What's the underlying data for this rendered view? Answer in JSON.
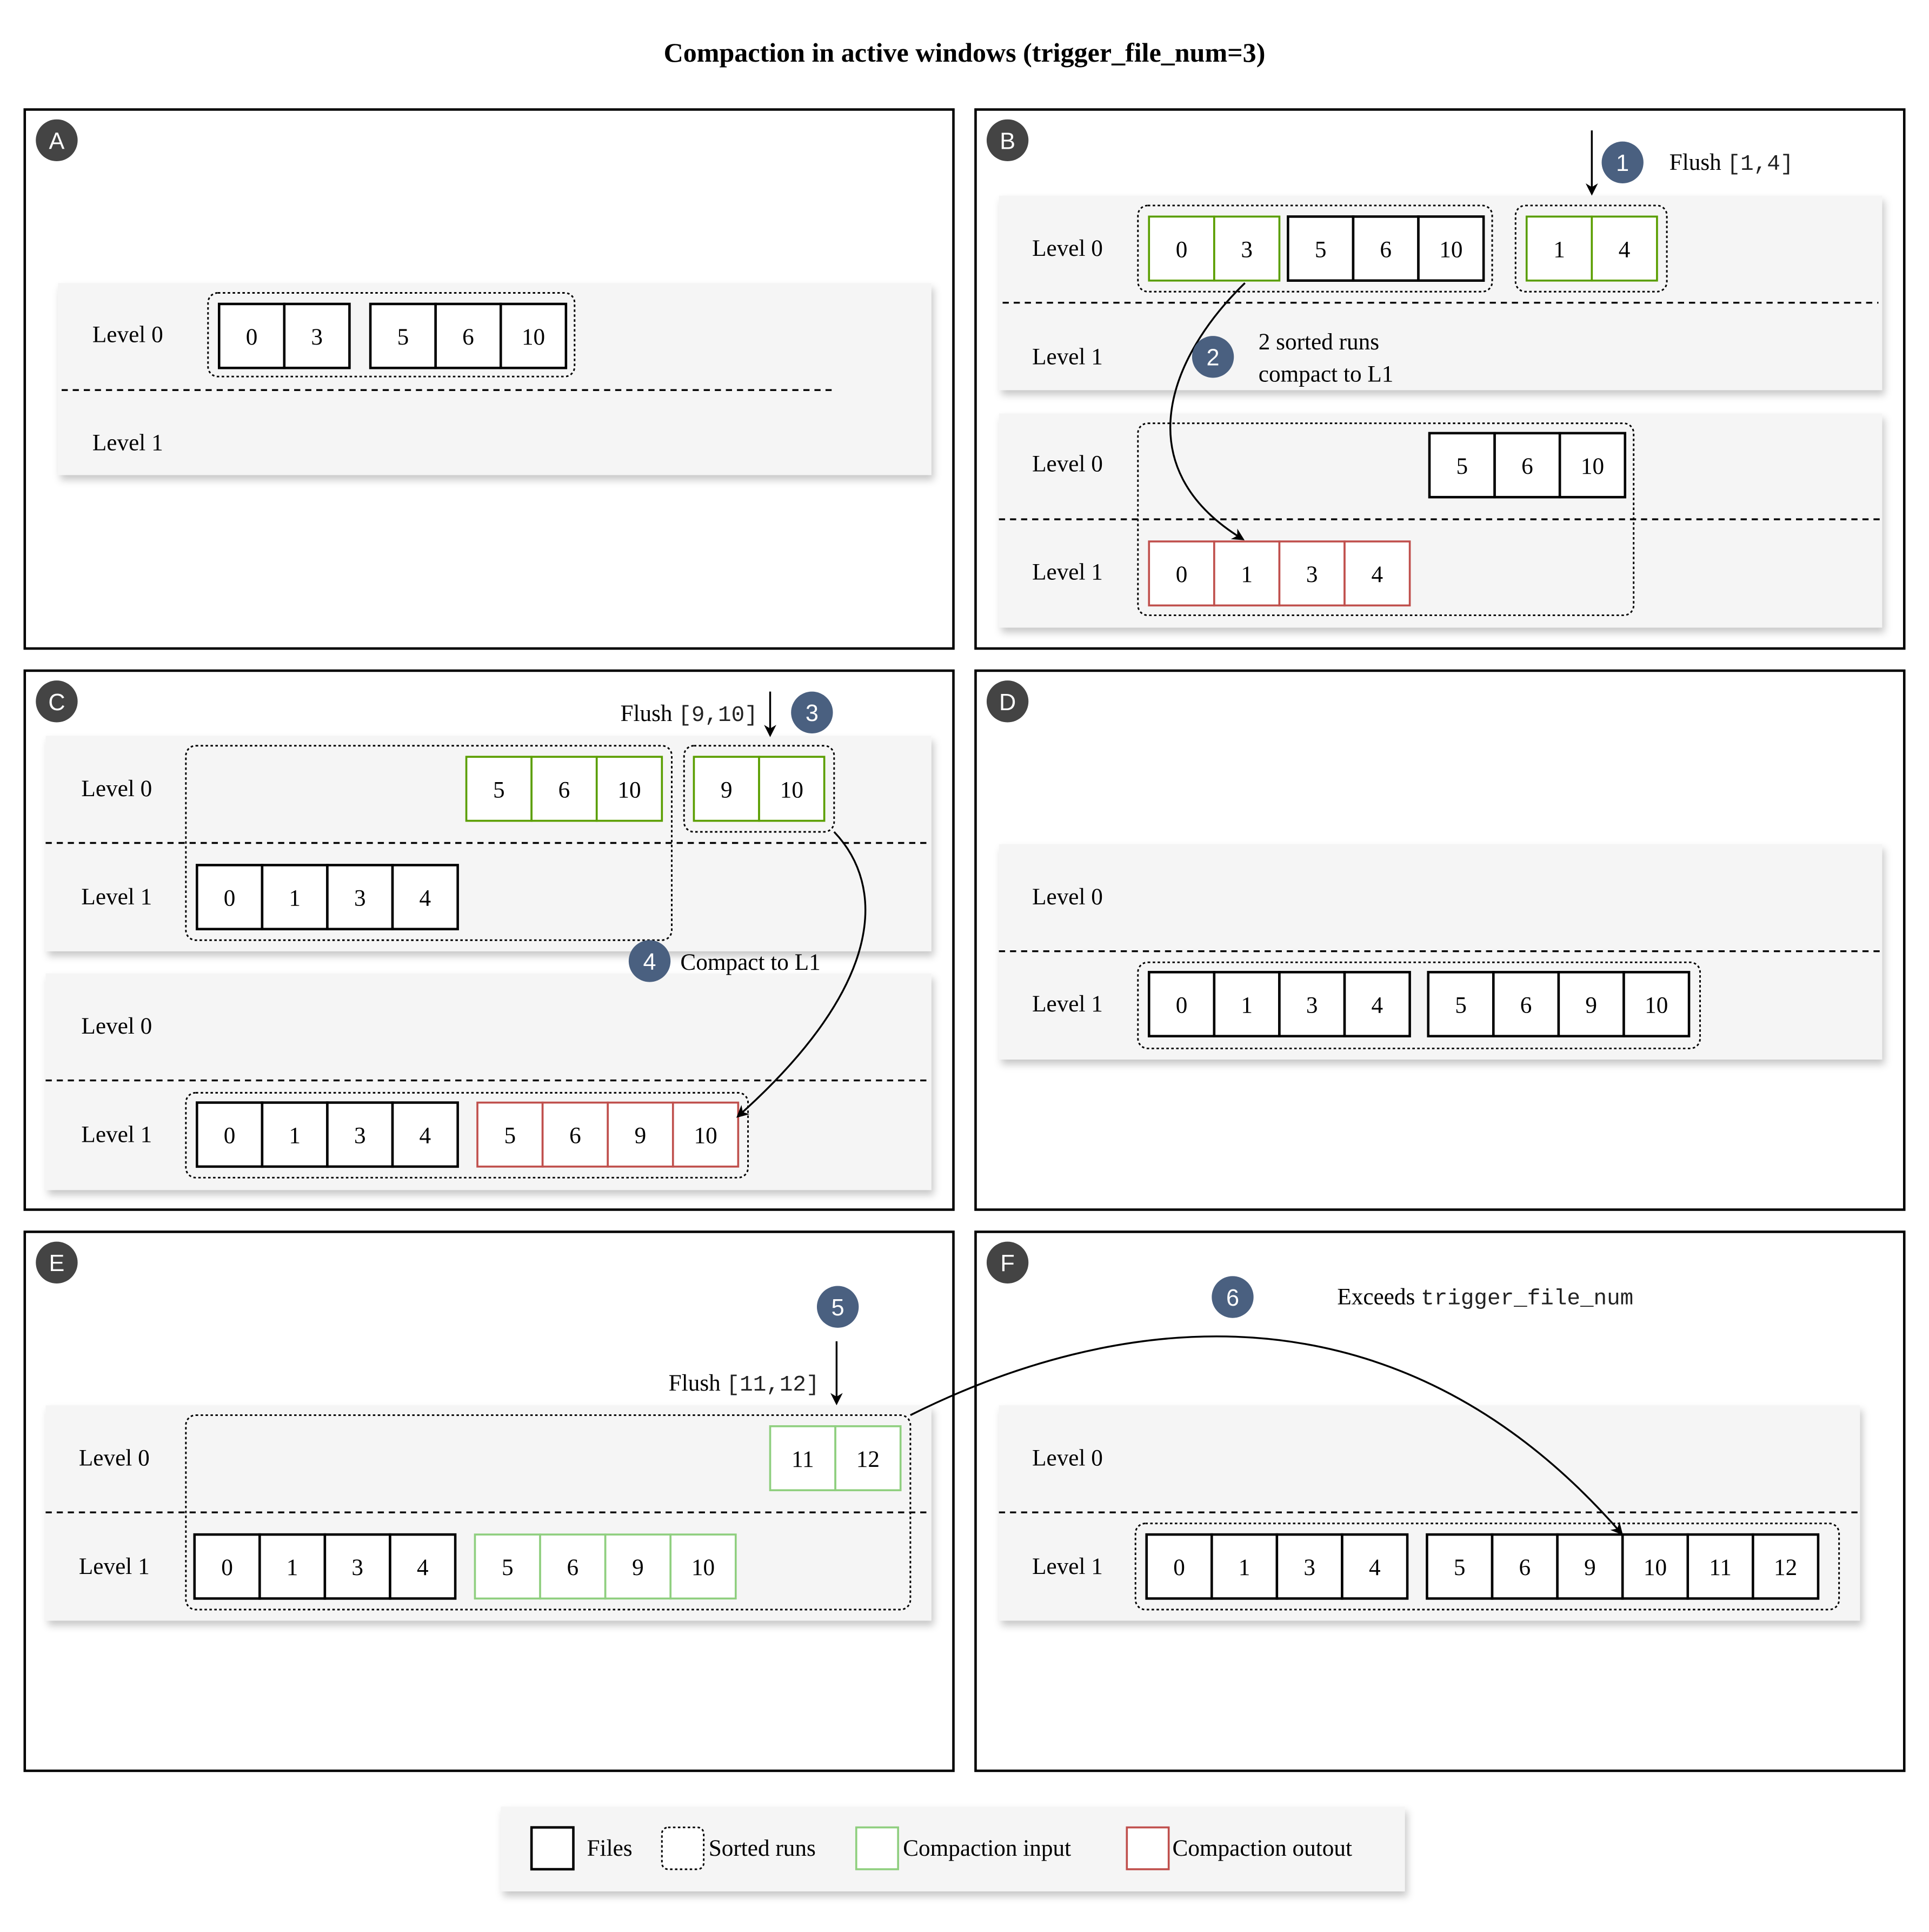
{
  "title": "Compaction in active windows (trigger_file_num=3)",
  "colors": {
    "files": "#000000",
    "input": "#5a9e00",
    "input_light": "#8fcf7f",
    "output": "#c0504d",
    "step_badge": "#4a6080",
    "panel_badge": "#444444",
    "band": "#f5f5f5"
  },
  "level_labels": {
    "l0": "Level 0",
    "l1": "Level 1"
  },
  "panels": {
    "A": {
      "letter": "A",
      "l0_files": [
        [
          "0",
          "3"
        ],
        [
          "5",
          "6",
          "10"
        ]
      ]
    },
    "B": {
      "letter": "B",
      "step1": "1",
      "flush_word": "Flush",
      "flush_range": "[1,4]",
      "step2": "2",
      "note_line1": "2 sorted runs",
      "note_line2": "compact to L1",
      "top_l0_input": [
        "0",
        "3"
      ],
      "top_l0_files": [
        "5",
        "6",
        "10"
      ],
      "top_l0_flushed": [
        "1",
        "4"
      ],
      "bottom_l0_files": [
        "5",
        "6",
        "10"
      ],
      "bottom_l1_output": [
        "0",
        "1",
        "3",
        "4"
      ]
    },
    "C": {
      "letter": "C",
      "step3": "3",
      "flush_word": "Flush",
      "flush_range": "[9,10]",
      "step4": "4",
      "note": "Compact to L1",
      "top_l0_input": [
        "5",
        "6",
        "10"
      ],
      "top_l0_flushed": [
        "9",
        "10"
      ],
      "top_l1_files": [
        "0",
        "1",
        "3",
        "4"
      ],
      "bottom_l1_files": [
        "0",
        "1",
        "3",
        "4"
      ],
      "bottom_l1_output": [
        "5",
        "6",
        "9",
        "10"
      ]
    },
    "D": {
      "letter": "D",
      "l1_files": [
        [
          "0",
          "1",
          "3",
          "4"
        ],
        [
          "5",
          "6",
          "9",
          "10"
        ]
      ]
    },
    "E": {
      "letter": "E",
      "step5": "5",
      "flush_word": "Flush",
      "flush_range": "[11,12]",
      "l0_flushed": [
        "11",
        "12"
      ],
      "l1_files": [
        "0",
        "1",
        "3",
        "4"
      ],
      "l1_input": [
        "5",
        "6",
        "9",
        "10"
      ]
    },
    "F": {
      "letter": "F",
      "step6": "6",
      "note_word": "Exceeds",
      "note_code": "trigger_file_num",
      "l1_files": [
        [
          "0",
          "1",
          "3",
          "4"
        ],
        [
          "5",
          "6",
          "9",
          "10",
          "11",
          "12"
        ]
      ]
    }
  },
  "legend": {
    "files": "Files",
    "sorted_runs": "Sorted runs",
    "input": "Compaction input",
    "output": "Compaction outout"
  }
}
